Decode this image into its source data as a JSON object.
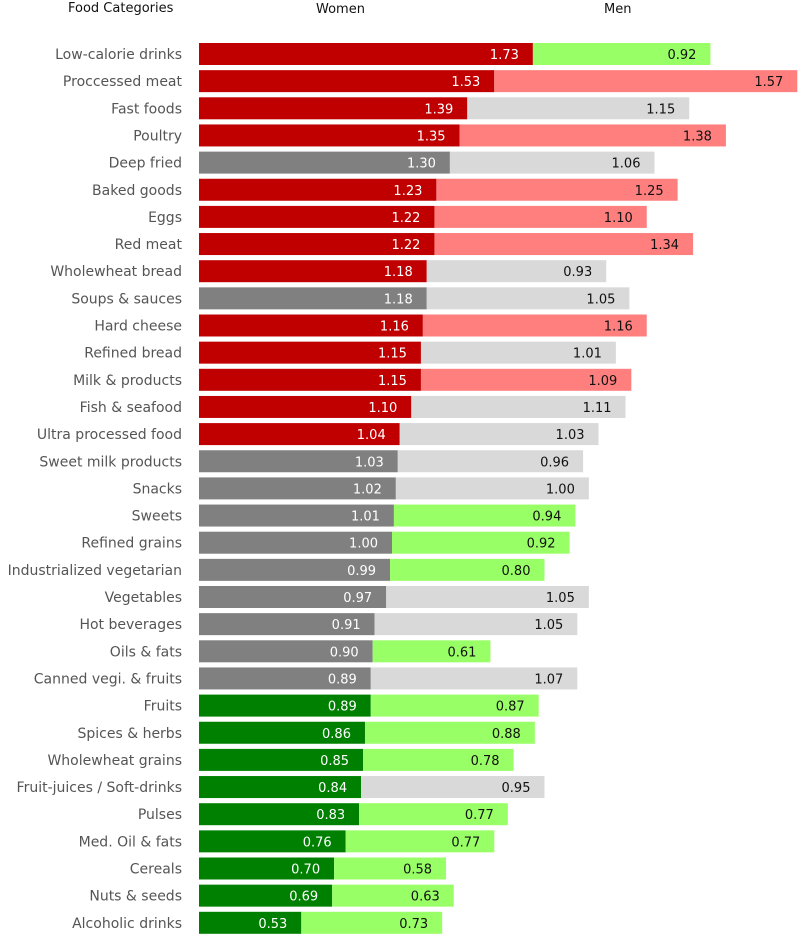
{
  "chart_data": {
    "type": "bar",
    "headers": {
      "categories": "Food Categories",
      "women": "Women",
      "men": "Men"
    },
    "colors": {
      "women_high": "#C00000",
      "women_neutral": "#808080",
      "women_low": "#008000",
      "men_high": "#FF7F7F",
      "men_neutral": "#D9D9D9",
      "men_low": "#99FF66"
    },
    "categories": [
      "Low-calorie drinks",
      "Proccessed meat",
      "Fast foods",
      "Poultry",
      "Deep fried",
      "Baked goods",
      "Eggs",
      "Red meat",
      "Wholewheat bread",
      "Soups & sauces",
      "Hard cheese",
      "Refined bread",
      "Milk & products",
      "Fish & seafood",
      "Ultra processed food",
      "Sweet milk products",
      "Snacks",
      "Sweets",
      "Refined grains",
      "Industrialized vegetarian",
      "Vegetables",
      "Hot beverages",
      "Oils & fats",
      "Canned vegi. & fruits",
      "Fruits",
      "Spices & herbs",
      "Wholewheat grains",
      "Fruit-juices / Soft-drinks",
      "Pulses",
      "Med. Oil & fats",
      "Cereals",
      "Nuts & seeds",
      "Alcoholic drinks"
    ],
    "series": [
      {
        "name": "Women",
        "values": [
          1.73,
          1.53,
          1.39,
          1.35,
          1.3,
          1.23,
          1.22,
          1.22,
          1.18,
          1.18,
          1.16,
          1.15,
          1.15,
          1.1,
          1.04,
          1.03,
          1.02,
          1.01,
          1.0,
          0.99,
          0.97,
          0.91,
          0.9,
          0.89,
          0.89,
          0.86,
          0.85,
          0.84,
          0.83,
          0.76,
          0.7,
          0.69,
          0.53
        ],
        "labels": [
          "1.73",
          "1.53",
          "1.39",
          "1.35",
          "1.30",
          "1.23",
          "1.22",
          "1.22",
          "1.18",
          "1.18",
          "1.16",
          "1.15",
          "1.15",
          "1.10",
          "1.04",
          "1.03",
          "1.02",
          "1.01",
          "1.00",
          "0.99",
          "0.97",
          "0.91",
          "0.90",
          "0.89",
          "0.89",
          "0.86",
          "0.85",
          "0.84",
          "0.83",
          "0.76",
          "0.70",
          "0.69",
          "0.53"
        ],
        "color_class": [
          "high",
          "high",
          "high",
          "high",
          "neutral",
          "high",
          "high",
          "high",
          "high",
          "neutral",
          "high",
          "high",
          "high",
          "high",
          "high",
          "neutral",
          "neutral",
          "neutral",
          "neutral",
          "neutral",
          "neutral",
          "neutral",
          "neutral",
          "neutral",
          "low",
          "low",
          "low",
          "low",
          "low",
          "low",
          "low",
          "low",
          "low"
        ]
      },
      {
        "name": "Men",
        "values": [
          0.92,
          1.57,
          1.15,
          1.38,
          1.06,
          1.25,
          1.1,
          1.34,
          0.93,
          1.05,
          1.16,
          1.01,
          1.09,
          1.11,
          1.03,
          0.96,
          1.0,
          0.94,
          0.92,
          0.8,
          1.05,
          1.05,
          0.61,
          1.07,
          0.87,
          0.88,
          0.78,
          0.95,
          0.77,
          0.77,
          0.58,
          0.63,
          0.73
        ],
        "labels": [
          "0.92",
          "1.57",
          "1.15",
          "1.38",
          "1.06",
          "1.25",
          "1.10",
          "1.34",
          "0.93",
          "1.05",
          "1.16",
          "1.01",
          "1.09",
          "1.11",
          "1.03",
          "0.96",
          "1.00",
          "0.94",
          "0.92",
          "0.80",
          "1.05",
          "1.05",
          "0.61",
          "1.07",
          "0.87",
          "0.88",
          "0.78",
          "0.95",
          "0.77",
          "0.77",
          "0.58",
          "0.63",
          "0.73"
        ],
        "color_class": [
          "low",
          "high",
          "neutral",
          "high",
          "neutral",
          "high",
          "high",
          "high",
          "neutral",
          "neutral",
          "high",
          "neutral",
          "high",
          "neutral",
          "neutral",
          "neutral",
          "neutral",
          "low",
          "low",
          "low",
          "neutral",
          "neutral",
          "low",
          "neutral",
          "low",
          "low",
          "low",
          "neutral",
          "low",
          "low",
          "low",
          "low",
          "low"
        ]
      }
    ],
    "stacked": true,
    "orientation": "horizontal",
    "grid": false,
    "legend": "none"
  }
}
